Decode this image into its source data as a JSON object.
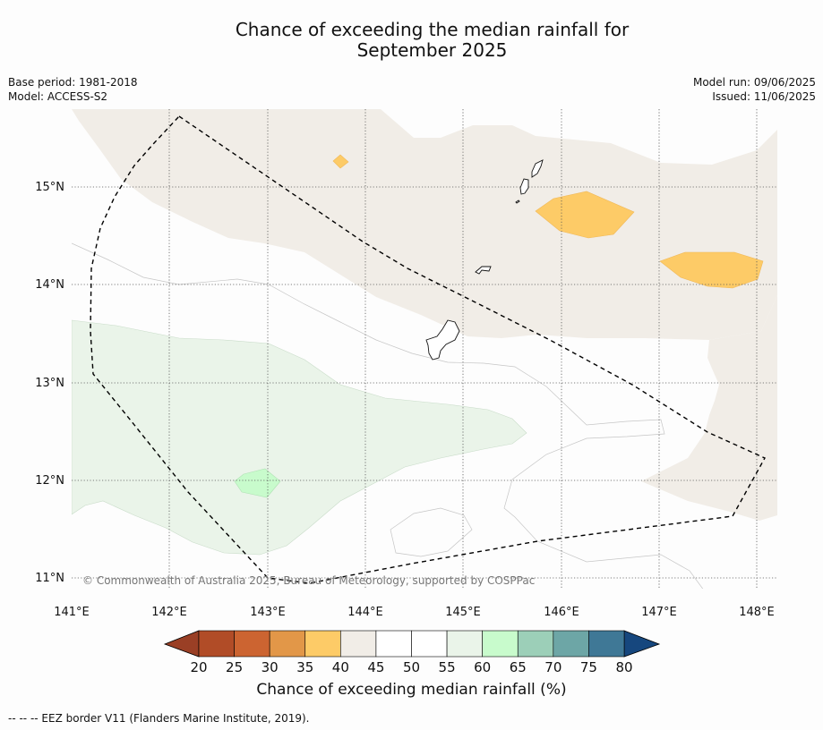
{
  "title": {
    "line1": "Chance of exceeding the median rainfall for",
    "line2": "September 2025"
  },
  "meta": {
    "base_period": "Base period: 1981-2018",
    "model": "Model: ACCESS-S2",
    "model_run": "Model run: 09/06/2025",
    "issued": "Issued: 11/06/2025"
  },
  "map": {
    "lat_labels": [
      "15°N",
      "14°N",
      "13°N",
      "12°N",
      "11°N"
    ],
    "lon_labels": [
      "141°E",
      "142°E",
      "143°E",
      "144°E",
      "145°E",
      "146°E",
      "147°E",
      "148°E"
    ],
    "copyright": "© Commonwealth of Australia 2025, Bureau of Meteorology, supported by COSPPac"
  },
  "colorbar": {
    "ticks": [
      "20",
      "25",
      "30",
      "35",
      "40",
      "45",
      "50",
      "55",
      "60",
      "65",
      "70",
      "75",
      "80"
    ],
    "colors": [
      "#b14c27",
      "#cc6431",
      "#e29748",
      "#fdcb67",
      "#f1ede7",
      "#ffffff",
      "#ffffff",
      "#eaf4e9",
      "#c8fbcc",
      "#9ccfb8",
      "#6da6a6",
      "#3f7896"
    ],
    "low_extend_color": "#9a3f25",
    "high_extend_color": "#16477e",
    "label": "Chance of exceeding median rainfall (%)"
  },
  "footnote": "--  --  -- EEZ border V11 (Flanders Marine Institute, 2019)."
}
